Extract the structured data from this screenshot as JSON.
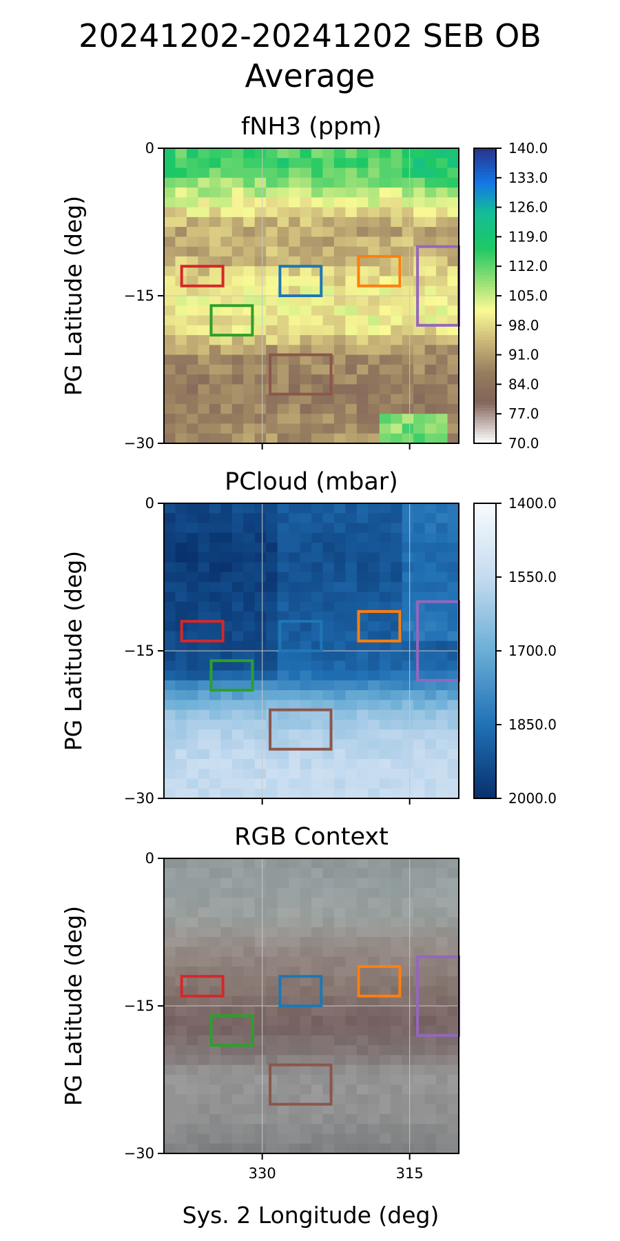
{
  "figure": {
    "title_line1": "20241202-20241202 SEB OB",
    "title_line2": "Average",
    "xlabel": "Sys. 2 Longitude (deg)"
  },
  "chart_data": [
    {
      "type": "heatmap",
      "title": "fNH3 (ppm)",
      "ylabel": "PG Latitude (deg)",
      "xlabel": "",
      "xlim": [
        340,
        310
      ],
      "ylim": [
        -30,
        0
      ],
      "yticks": [
        "0",
        "−15",
        "−30"
      ],
      "xticks": [
        330,
        315
      ],
      "xticklabels": [
        "",
        ""
      ],
      "grid": true,
      "colormap": "terrain_r",
      "colorbar": {
        "min": 70,
        "max": 140,
        "ticks": [
          "140.0",
          "133.0",
          "126.0",
          "119.0",
          "112.0",
          "105.0",
          "98.0",
          "91.0",
          "84.0",
          "77.0",
          "70.0"
        ]
      }
    },
    {
      "type": "heatmap",
      "title": "PCloud (mbar)",
      "ylabel": "PG Latitude (deg)",
      "xlabel": "",
      "xlim": [
        340,
        310
      ],
      "ylim": [
        -30,
        0
      ],
      "yticks": [
        "0",
        "−15",
        "−30"
      ],
      "xticks": [
        330,
        315
      ],
      "xticklabels": [
        "",
        ""
      ],
      "grid": true,
      "colormap": "Blues",
      "colorbar": {
        "min": 1400,
        "max": 2000,
        "ticks": [
          "1400.0",
          "1550.0",
          "1700.0",
          "1850.0",
          "2000.0"
        ]
      }
    },
    {
      "type": "heatmap",
      "title": "RGB Context",
      "ylabel": "PG Latitude (deg)",
      "xlabel": "Sys. 2 Longitude (deg)",
      "xlim": [
        340,
        310
      ],
      "ylim": [
        -30,
        0
      ],
      "yticks": [
        "0",
        "−15",
        "−30"
      ],
      "xticks": [
        330,
        315
      ],
      "xticklabels": [
        "330",
        "315"
      ],
      "grid": true,
      "colormap": "rgb",
      "colorbar": null
    }
  ],
  "regions": [
    {
      "color": "#d62728",
      "lon": [
        338.2,
        334.0
      ],
      "lat": [
        -12.0,
        -14.0
      ]
    },
    {
      "color": "#1f77b4",
      "lon": [
        328.2,
        324.0
      ],
      "lat": [
        -12.0,
        -15.0
      ]
    },
    {
      "color": "#ff7f0e",
      "lon": [
        320.2,
        316.0
      ],
      "lat": [
        -11.0,
        -14.0
      ]
    },
    {
      "color": "#9467bd",
      "lon": [
        314.2,
        310.0
      ],
      "lat": [
        -10.0,
        -18.0
      ]
    },
    {
      "color": "#2ca02c",
      "lon": [
        335.2,
        331.0
      ],
      "lat": [
        -16.0,
        -19.0
      ]
    },
    {
      "color": "#8c564b",
      "lon": [
        329.2,
        323.0
      ],
      "lat": [
        -21.0,
        -25.0
      ]
    }
  ]
}
